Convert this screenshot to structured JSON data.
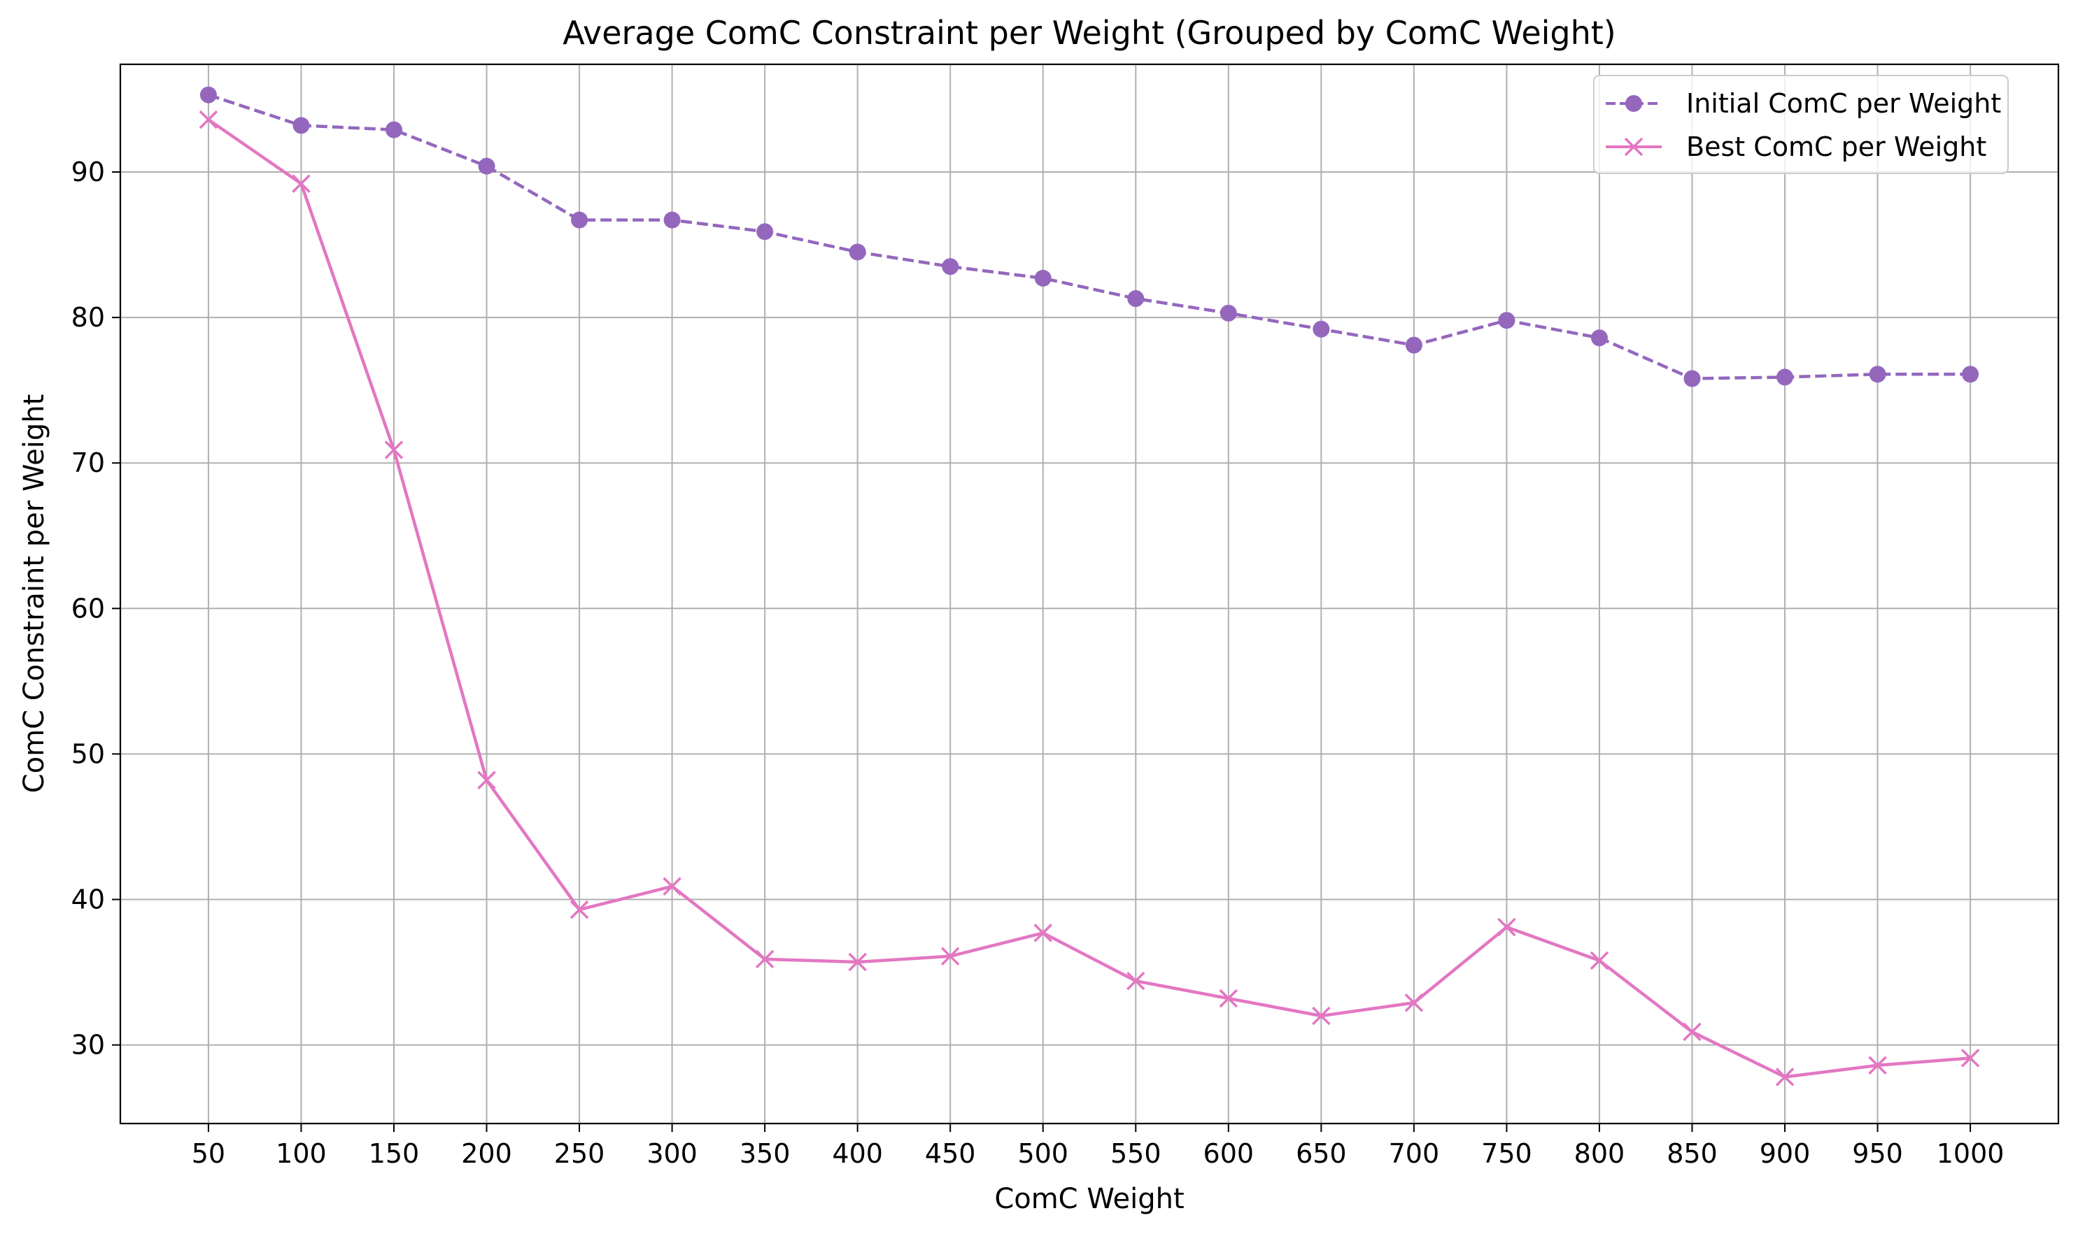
{
  "chart_data": {
    "type": "line",
    "title": "Average ComC Constraint per Weight (Grouped by ComC Weight)",
    "xlabel": "ComC Weight",
    "ylabel": "ComC Constraint per Weight",
    "x": [
      50,
      100,
      150,
      200,
      250,
      300,
      350,
      400,
      450,
      500,
      550,
      600,
      650,
      700,
      750,
      800,
      850,
      900,
      950,
      1000
    ],
    "x_tick_labels": [
      "50",
      "100",
      "150",
      "200",
      "250",
      "300",
      "350",
      "400",
      "450",
      "500",
      "550",
      "600",
      "650",
      "700",
      "750",
      "800",
      "850",
      "900",
      "950",
      "1000"
    ],
    "xlim": [
      2.5,
      1047.5
    ],
    "ylim": [
      24.6,
      97.4
    ],
    "y_ticks": [
      30,
      40,
      50,
      60,
      70,
      80,
      90
    ],
    "y_tick_labels": [
      "30",
      "40",
      "50",
      "60",
      "70",
      "80",
      "90"
    ],
    "grid": true,
    "legend_position": "top-right",
    "series": [
      {
        "name": "Initial ComC per Weight",
        "color": "#9467bd",
        "line_style": "dashed",
        "marker": "circle",
        "values": [
          95.3,
          93.2,
          92.9,
          90.4,
          86.7,
          86.7,
          85.9,
          84.5,
          83.5,
          82.7,
          81.3,
          80.3,
          79.2,
          78.1,
          79.8,
          78.6,
          75.8,
          75.9,
          76.1,
          76.1
        ]
      },
      {
        "name": "Best ComC per Weight",
        "color": "#e377c2",
        "line_style": "solid",
        "marker": "x",
        "values": [
          93.6,
          89.2,
          70.9,
          48.2,
          39.3,
          40.9,
          35.9,
          35.7,
          36.1,
          37.7,
          34.4,
          33.2,
          32.0,
          32.9,
          38.1,
          35.8,
          30.9,
          27.8,
          28.6,
          29.1
        ]
      }
    ]
  }
}
